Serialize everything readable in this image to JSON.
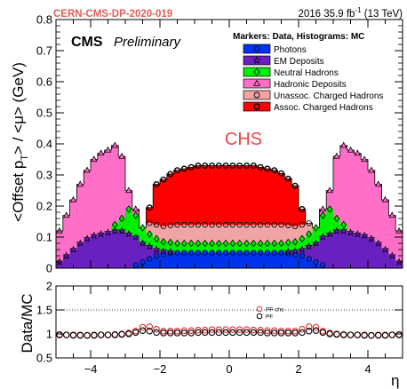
{
  "header": {
    "tag": "CERN-CMS-DP-2020-019",
    "lumi_prefix": "2016 35.9 fb",
    "lumi_exp": "-1",
    "lumi_suffix": " (13 TeV)",
    "cms": "CMS",
    "preliminary": "Preliminary"
  },
  "colors": {
    "tag": "#e0605a",
    "chs": "#ee4444",
    "Photons": "#0033ee",
    "EM Deposits": "#6a1fc0",
    "Neutral Hadrons": "#00ee00",
    "Hadronic Deposits": "#ff6ec7",
    "Unassoc. Charged Hadrons": "#f2a3a3",
    "Assoc. Charged Hadrons": "#ff0000",
    "ratio_pfchs": "#e03030",
    "ratio_pf": "#000000"
  },
  "chart_data": [
    {
      "type": "area",
      "subtype": "stacked_histogram_with_data_markers",
      "annotation": "CHS",
      "xlabel": "",
      "ylabel": "<Offset p_T> / <μ> (GeV)",
      "ylabel_parts": [
        "<Offset p",
        "T",
        "> / <μ> (GeV)"
      ],
      "xlim": [
        -5,
        5
      ],
      "ylim": [
        0,
        0.8
      ],
      "yticks": [
        "0",
        "0.1",
        "0.2",
        "0.3",
        "0.4",
        "0.5",
        "0.6",
        "0.7",
        "0.8"
      ],
      "legend_title": "Markers: Data, Histograms: MC",
      "legend_position": "top-right",
      "x": [
        -4.9,
        -4.7,
        -4.5,
        -4.3,
        -4.1,
        -3.9,
        -3.7,
        -3.5,
        -3.3,
        -3.1,
        -2.9,
        -2.7,
        -2.5,
        -2.3,
        -2.1,
        -1.9,
        -1.7,
        -1.5,
        -1.3,
        -1.1,
        -0.9,
        -0.7,
        -0.5,
        -0.3,
        -0.1,
        0.1,
        0.3,
        0.5,
        0.7,
        0.9,
        1.1,
        1.3,
        1.5,
        1.7,
        1.9,
        2.1,
        2.3,
        2.5,
        2.7,
        2.9,
        3.1,
        3.3,
        3.5,
        3.7,
        3.9,
        4.1,
        4.3,
        4.5,
        4.7,
        4.9
      ],
      "series": [
        {
          "name": "Photons",
          "marker": "circle-filled",
          "values": [
            0,
            0,
            0,
            0,
            0,
            0,
            0,
            0,
            0,
            0,
            0,
            0.01,
            0.02,
            0.03,
            0.04,
            0.045,
            0.048,
            0.05,
            0.05,
            0.05,
            0.05,
            0.05,
            0.05,
            0.05,
            0.05,
            0.05,
            0.05,
            0.05,
            0.05,
            0.05,
            0.05,
            0.05,
            0.05,
            0.048,
            0.045,
            0.04,
            0.03,
            0.02,
            0.01,
            0,
            0,
            0,
            0,
            0,
            0,
            0,
            0,
            0,
            0,
            0
          ]
        },
        {
          "name": "EM Deposits",
          "marker": "star",
          "values": [
            0.02,
            0.04,
            0.06,
            0.08,
            0.095,
            0.105,
            0.11,
            0.115,
            0.12,
            0.12,
            0.11,
            0.09,
            0.06,
            0.04,
            0.02,
            0.01,
            0.005,
            0,
            0,
            0,
            0,
            0,
            0,
            0,
            0,
            0,
            0,
            0,
            0,
            0,
            0,
            0,
            0,
            0.005,
            0.01,
            0.02,
            0.04,
            0.06,
            0.09,
            0.11,
            0.12,
            0.12,
            0.115,
            0.11,
            0.105,
            0.095,
            0.08,
            0.06,
            0.04,
            0.02
          ]
        },
        {
          "name": "Neutral Hadrons",
          "marker": "diamond",
          "values": [
            0,
            0,
            0,
            0,
            0,
            0,
            0,
            0,
            0.02,
            0.04,
            0.08,
            0.07,
            0.05,
            0.04,
            0.035,
            0.03,
            0.03,
            0.03,
            0.03,
            0.03,
            0.03,
            0.03,
            0.03,
            0.03,
            0.03,
            0.03,
            0.03,
            0.03,
            0.03,
            0.03,
            0.03,
            0.03,
            0.03,
            0.03,
            0.03,
            0.035,
            0.04,
            0.05,
            0.07,
            0.08,
            0.04,
            0.02,
            0,
            0,
            0,
            0,
            0,
            0,
            0,
            0
          ]
        },
        {
          "name": "Hadronic Deposits",
          "marker": "triangle",
          "values": [
            0.1,
            0.13,
            0.16,
            0.19,
            0.22,
            0.245,
            0.26,
            0.265,
            0.255,
            0.2,
            0.06,
            0.02,
            0,
            0,
            0,
            0,
            0,
            0,
            0,
            0,
            0,
            0,
            0,
            0,
            0,
            0,
            0,
            0,
            0,
            0,
            0,
            0,
            0,
            0,
            0,
            0,
            0,
            0,
            0.02,
            0.06,
            0.2,
            0.255,
            0.265,
            0.26,
            0.245,
            0.22,
            0.19,
            0.16,
            0.13,
            0.1
          ]
        },
        {
          "name": "Unassoc. Charged Hadrons",
          "marker": "circle-open",
          "values": [
            0,
            0,
            0,
            0,
            0,
            0,
            0,
            0,
            0,
            0,
            0,
            0,
            0,
            0.035,
            0.045,
            0.05,
            0.055,
            0.06,
            0.06,
            0.06,
            0.06,
            0.06,
            0.06,
            0.06,
            0.06,
            0.06,
            0.06,
            0.06,
            0.06,
            0.06,
            0.06,
            0.06,
            0.06,
            0.055,
            0.05,
            0.045,
            0.035,
            0,
            0,
            0,
            0,
            0,
            0,
            0,
            0,
            0,
            0,
            0,
            0,
            0
          ]
        },
        {
          "name": "Assoc. Charged Hadrons",
          "marker": "circle-open-bold",
          "values": [
            0,
            0,
            0,
            0,
            0,
            0,
            0,
            0,
            0,
            0,
            0,
            0,
            0,
            0.05,
            0.13,
            0.15,
            0.165,
            0.175,
            0.18,
            0.185,
            0.19,
            0.19,
            0.19,
            0.19,
            0.19,
            0.19,
            0.19,
            0.19,
            0.19,
            0.185,
            0.18,
            0.175,
            0.165,
            0.15,
            0.13,
            0.05,
            0,
            0,
            0,
            0,
            0,
            0,
            0,
            0,
            0,
            0,
            0,
            0,
            0,
            0
          ]
        }
      ]
    },
    {
      "type": "scatter",
      "ylabel": "Data/MC",
      "xlabel": "η",
      "xlim": [
        -5,
        5
      ],
      "ylim": [
        0.5,
        2
      ],
      "xticks": [
        "−4",
        "−2",
        "0",
        "2",
        "4"
      ],
      "yticks": [
        "0.5",
        "1",
        "1.5",
        "2"
      ],
      "grid": "dotted lines at 1.5 and 2",
      "legend_position": "center",
      "x": [
        -4.9,
        -4.7,
        -4.5,
        -4.3,
        -4.1,
        -3.9,
        -3.7,
        -3.5,
        -3.3,
        -3.1,
        -2.9,
        -2.7,
        -2.5,
        -2.3,
        -2.1,
        -1.9,
        -1.7,
        -1.5,
        -1.3,
        -1.1,
        -0.9,
        -0.7,
        -0.5,
        -0.3,
        -0.1,
        0.1,
        0.3,
        0.5,
        0.7,
        0.9,
        1.1,
        1.3,
        1.5,
        1.7,
        1.9,
        2.1,
        2.3,
        2.5,
        2.7,
        2.9,
        3.1,
        3.3,
        3.5,
        3.7,
        3.9,
        4.1,
        4.3,
        4.5,
        4.7,
        4.9
      ],
      "series": [
        {
          "name": "PF chs",
          "marker": "circle-open",
          "values": [
            0.99,
            0.98,
            0.98,
            0.98,
            0.97,
            0.98,
            0.98,
            0.98,
            0.99,
            1.0,
            1.02,
            1.06,
            1.14,
            1.15,
            1.1,
            1.06,
            1.06,
            1.06,
            1.07,
            1.07,
            1.08,
            1.08,
            1.09,
            1.09,
            1.09,
            1.09,
            1.09,
            1.09,
            1.08,
            1.08,
            1.07,
            1.07,
            1.06,
            1.06,
            1.06,
            1.1,
            1.15,
            1.14,
            1.06,
            1.02,
            1.0,
            0.99,
            0.98,
            0.98,
            0.98,
            0.97,
            0.98,
            0.98,
            0.98,
            0.99
          ]
        },
        {
          "name": "PF",
          "marker": "circle-open",
          "values": [
            0.98,
            0.98,
            0.97,
            0.97,
            0.97,
            0.97,
            0.98,
            0.98,
            0.98,
            0.99,
            1.0,
            1.03,
            1.07,
            1.06,
            1.03,
            1.02,
            1.02,
            1.02,
            1.02,
            1.02,
            1.03,
            1.03,
            1.03,
            1.03,
            1.03,
            1.03,
            1.03,
            1.03,
            1.03,
            1.03,
            1.02,
            1.02,
            1.02,
            1.02,
            1.02,
            1.03,
            1.06,
            1.07,
            1.03,
            1.0,
            0.99,
            0.98,
            0.98,
            0.98,
            0.97,
            0.97,
            0.97,
            0.97,
            0.98,
            0.98
          ]
        }
      ]
    }
  ]
}
